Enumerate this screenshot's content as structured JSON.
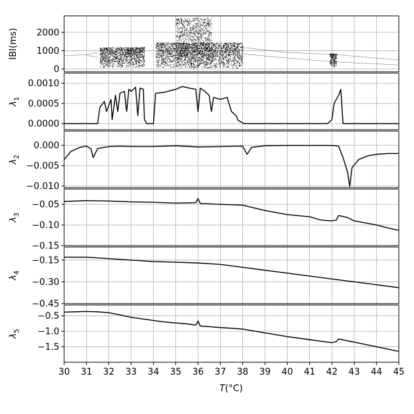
{
  "chart_data": {
    "type": "line",
    "x_axis": {
      "label_var": "T",
      "label_unit": "(°C)",
      "range": [
        30,
        45
      ],
      "ticks": [
        30,
        31,
        32,
        33,
        34,
        35,
        36,
        37,
        38,
        39,
        40,
        41,
        42,
        43,
        44,
        45
      ],
      "tick_labels": [
        "30",
        "31",
        "32",
        "33",
        "34",
        "35",
        "36",
        "37",
        "38",
        "39",
        "40",
        "41",
        "42",
        "43",
        "44",
        "45"
      ]
    },
    "grid": true,
    "panels": [
      {
        "id": "ibi",
        "type": "scatter",
        "ylabel_main": "IBI(ms)",
        "ylabel_sub": "",
        "ylim": [
          -150,
          2900
        ],
        "yticks": [
          0,
          1000,
          2000
        ],
        "ytick_labels": [
          "0",
          "1000",
          "2000"
        ],
        "branches": [
          {
            "x": [
              30,
              31,
              31.5
            ],
            "y": [
              720,
              780,
              900
            ]
          },
          {
            "x": [
              31,
              31.5
            ],
            "y": [
              740,
              650
            ]
          },
          {
            "x": [
              38,
              40,
              42,
              45
            ],
            "y": [
              1180,
              900,
              800,
              500
            ]
          },
          {
            "x": [
              38,
              40,
              42,
              45
            ],
            "y": [
              820,
              600,
              400,
              220
            ]
          }
        ],
        "chaotic_bands": [
          {
            "x": [
              31.6,
              33.6
            ],
            "y": [
              80,
              1200
            ]
          },
          {
            "x": [
              34.1,
              38.0
            ],
            "y": [
              60,
              1450
            ]
          },
          {
            "x": [
              35.0,
              36.6
            ],
            "y": [
              60,
              2800
            ]
          },
          {
            "x": [
              41.9,
              42.2
            ],
            "y": [
              100,
              850
            ]
          }
        ]
      },
      {
        "id": "lambda1",
        "type": "line",
        "ylabel_main": "λ",
        "ylabel_sub": "1",
        "ylim": [
          -0.00015,
          0.00125
        ],
        "yticks": [
          0,
          0.0005,
          0.001
        ],
        "ytick_labels": [
          "0.0000",
          "0.0005",
          "0.0010"
        ],
        "x": [
          30,
          31.5,
          31.6,
          31.8,
          31.9,
          32.1,
          32.15,
          32.3,
          32.4,
          32.5,
          32.7,
          32.8,
          32.9,
          33.0,
          33.2,
          33.3,
          33.4,
          33.55,
          33.6,
          33.7,
          34.0,
          34.1,
          34.5,
          35.0,
          35.3,
          35.6,
          35.9,
          36.0,
          36.1,
          36.3,
          36.5,
          36.6,
          36.7,
          37.0,
          37.3,
          37.5,
          37.7,
          37.8,
          38.0,
          38.1,
          41.8,
          42.0,
          42.1,
          42.3,
          42.4,
          42.5,
          45
        ],
        "y": [
          0,
          0,
          0.0004,
          0.00055,
          0.0003,
          0.0006,
          0.0001,
          0.0007,
          0.0003,
          0.00075,
          0.0008,
          0.0003,
          0.00085,
          0.0008,
          0.0009,
          0.0002,
          0.00088,
          0.00085,
          0.0001,
          0.0,
          0.0,
          0.00075,
          0.00078,
          0.00085,
          0.00092,
          0.00088,
          0.00085,
          0.0003,
          0.00088,
          0.0008,
          0.0007,
          0.0003,
          0.00065,
          0.0006,
          0.00065,
          0.0003,
          0.0002,
          8e-05,
          2e-05,
          0,
          0,
          0.0001,
          0.0005,
          0.0007,
          0.00085,
          0,
          0
        ]
      },
      {
        "id": "lambda2",
        "type": "line",
        "ylabel_main": "λ",
        "ylabel_sub": "2",
        "ylim": [
          -0.0104,
          0.0035
        ],
        "yticks": [
          0,
          -0.005,
          -0.01
        ],
        "ytick_labels": [
          "0.000",
          "−0.005",
          "−0.010"
        ],
        "x": [
          30,
          30.3,
          30.7,
          31.0,
          31.2,
          31.3,
          31.5,
          32.0,
          32.5,
          33.0,
          34.0,
          35.0,
          36.0,
          37.0,
          38.0,
          38.2,
          38.4,
          39.0,
          40.0,
          41.0,
          42.0,
          42.3,
          42.5,
          42.7,
          42.8,
          42.9,
          43.2,
          43.6,
          44.0,
          44.5,
          45
        ],
        "y": [
          -0.0035,
          -0.0015,
          -0.0005,
          -0.0002,
          -0.0008,
          -0.003,
          -0.0008,
          -0.0003,
          -0.0002,
          -0.0003,
          -0.0003,
          -0.0001,
          -0.0004,
          -0.0003,
          -0.0002,
          -0.0022,
          -0.0005,
          -0.0001,
          0,
          0,
          0,
          -0.0002,
          -0.003,
          -0.0065,
          -0.0101,
          -0.0055,
          -0.0035,
          -0.0026,
          -0.0022,
          -0.002,
          -0.002
        ]
      },
      {
        "id": "lambda3",
        "type": "line",
        "ylabel_main": "λ",
        "ylabel_sub": "3",
        "ylim": [
          -0.15,
          -0.013
        ],
        "yticks": [
          -0.05,
          -0.1,
          -0.15
        ],
        "ytick_labels": [
          "−0.05",
          "−0.10",
          "−0.15"
        ],
        "x": [
          30,
          31,
          32,
          33,
          34,
          35,
          35.9,
          36.0,
          36.1,
          37,
          38,
          39,
          40,
          41,
          41.5,
          42,
          42.2,
          42.3,
          42.7,
          43,
          43.5,
          44,
          44.5,
          45
        ],
        "y": [
          -0.043,
          -0.041,
          -0.042,
          -0.044,
          -0.045,
          -0.047,
          -0.046,
          -0.036,
          -0.048,
          -0.05,
          -0.052,
          -0.065,
          -0.075,
          -0.08,
          -0.088,
          -0.09,
          -0.088,
          -0.077,
          -0.082,
          -0.09,
          -0.095,
          -0.1,
          -0.107,
          -0.113
        ]
      },
      {
        "id": "lambda4",
        "type": "line",
        "ylabel_main": "λ",
        "ylabel_sub": "4",
        "ylim": [
          -0.45,
          -0.06
        ],
        "yticks": [
          -0.15,
          -0.3,
          -0.45
        ],
        "ytick_labels": [
          "−0.15",
          "−0.30",
          "−0.45"
        ],
        "x": [
          30,
          31,
          32,
          33,
          34,
          35,
          36,
          37,
          38,
          39,
          40,
          41,
          42,
          43,
          44,
          45
        ],
        "y": [
          -0.13,
          -0.13,
          -0.14,
          -0.15,
          -0.16,
          -0.165,
          -0.17,
          -0.18,
          -0.2,
          -0.22,
          -0.24,
          -0.26,
          -0.28,
          -0.3,
          -0.32,
          -0.34
        ]
      },
      {
        "id": "lambda5",
        "type": "line",
        "ylabel_main": "λ",
        "ylabel_sub": "5",
        "ylim": [
          -2.0,
          -0.15
        ],
        "yticks": [
          -0.5,
          -1.0,
          -1.5
        ],
        "ytick_labels": [
          "−0.5",
          "−1.0",
          "−1.5"
        ],
        "x": [
          30,
          30.5,
          31,
          31.5,
          32,
          32.5,
          33,
          33.5,
          34,
          34.5,
          35,
          35.5,
          35.9,
          36.0,
          36.1,
          36.5,
          37,
          37.5,
          38,
          39,
          40,
          41,
          41.5,
          42,
          42.2,
          42.3,
          43,
          44,
          45
        ],
        "y": [
          -0.38,
          -0.37,
          -0.36,
          -0.37,
          -0.4,
          -0.47,
          -0.55,
          -0.6,
          -0.65,
          -0.7,
          -0.73,
          -0.76,
          -0.8,
          -0.67,
          -0.83,
          -0.85,
          -0.88,
          -0.9,
          -0.93,
          -1.05,
          -1.17,
          -1.27,
          -1.32,
          -1.37,
          -1.33,
          -1.25,
          -1.35,
          -1.5,
          -1.65
        ]
      }
    ]
  }
}
